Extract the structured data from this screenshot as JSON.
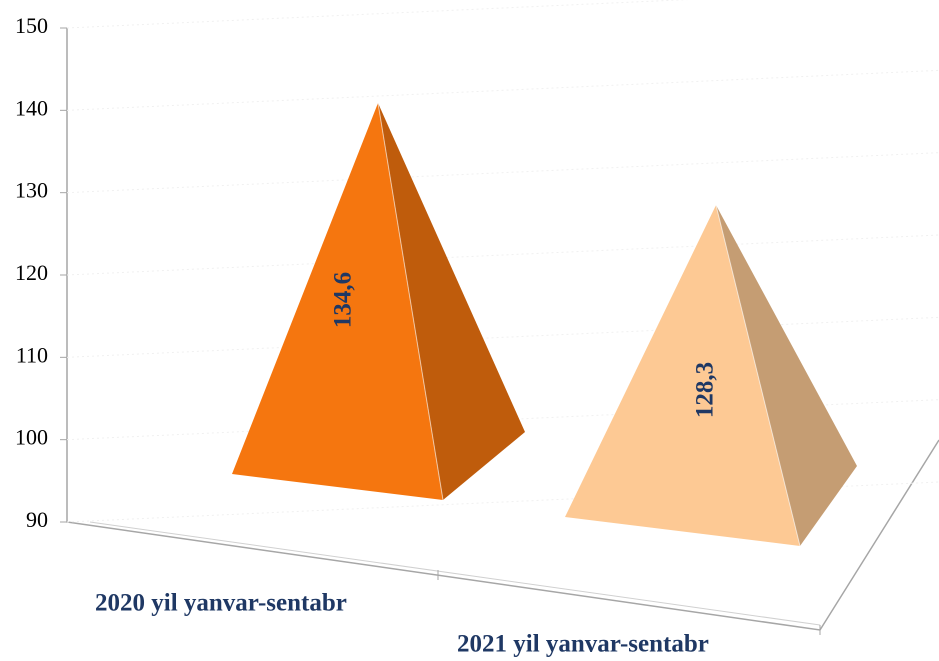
{
  "chart_data": {
    "type": "pyramid3d",
    "categories": [
      "2020 yil yanvar-sentabr",
      "2021 yil yanvar-sentabr"
    ],
    "values": [
      134.6,
      128.3
    ],
    "value_labels": [
      "134,6",
      "128,3"
    ],
    "colors": [
      "#f5760f",
      "#fdc994"
    ],
    "ylim": [
      90,
      150
    ],
    "yticks": [
      90,
      100,
      110,
      120,
      130,
      140,
      150
    ],
    "grid": true
  }
}
